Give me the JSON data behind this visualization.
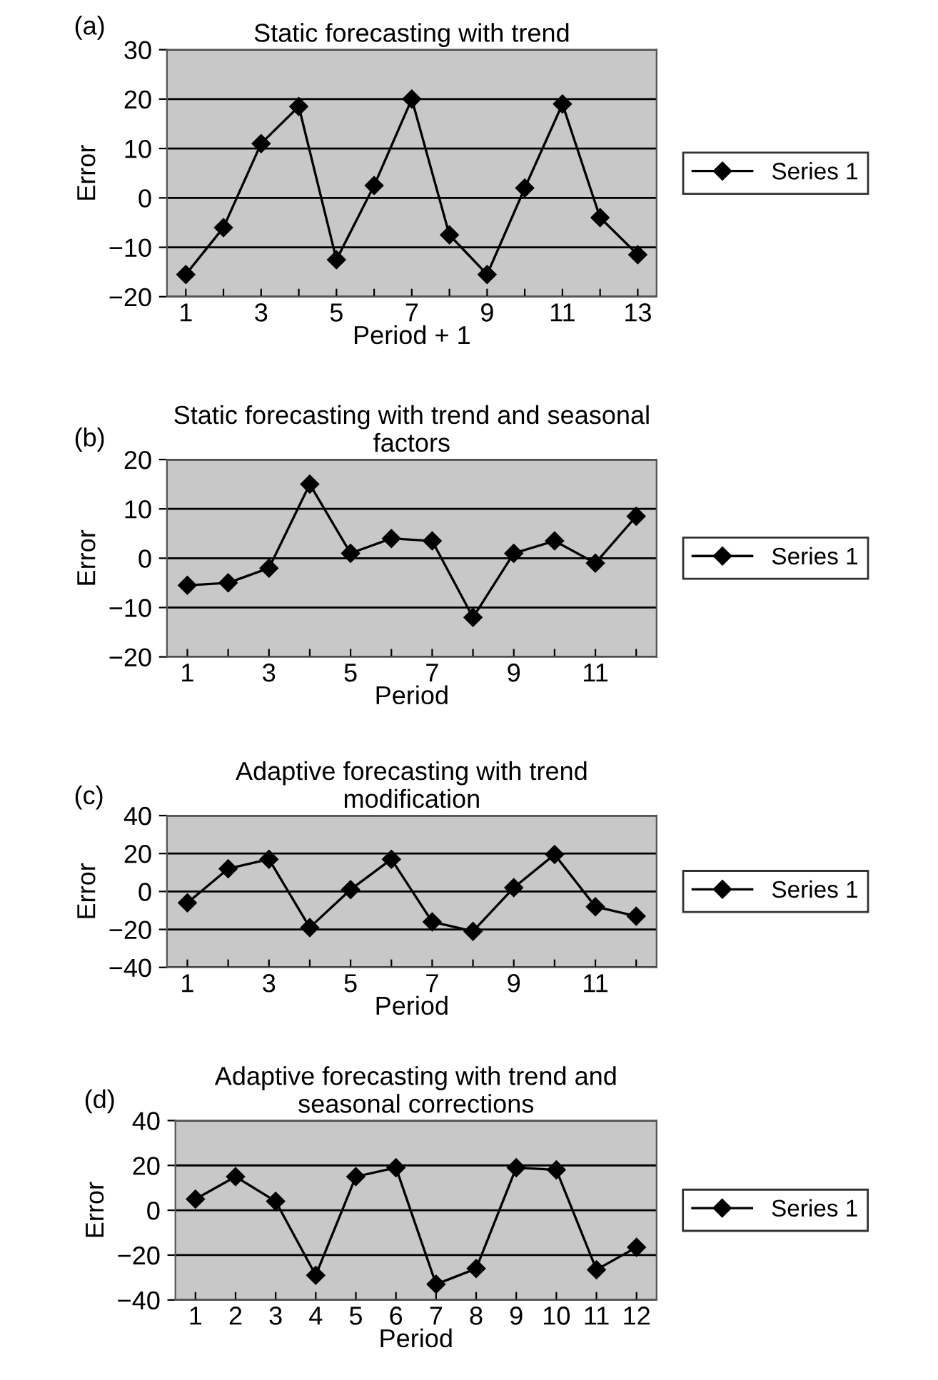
{
  "chart_data": [
    {
      "type": "line",
      "title": "Static forecasting with trend",
      "xlabel": "Period + 1",
      "ylabel": "Error",
      "annotations": [
        "(a)"
      ],
      "categories": [
        "1",
        null,
        "3",
        null,
        "5",
        null,
        "7",
        null,
        "9",
        null,
        "11",
        null,
        "13"
      ],
      "series": [
        {
          "name": "Series 1",
          "color": "#000000",
          "values": [
            -15.5,
            -6,
            11,
            18.5,
            -12.5,
            2.5,
            20,
            -7.5,
            -15.5,
            2,
            19,
            -4,
            -11.5
          ]
        }
      ],
      "ylim": [
        -20,
        30
      ],
      "yticks": [
        {
          "value": -20,
          "label": "−20"
        },
        {
          "value": -10,
          "label": "−10"
        },
        0,
        10,
        20,
        30
      ],
      "grid": "y",
      "legend": "right",
      "marker": "diamond",
      "line_style": "solid"
    },
    {
      "type": "line",
      "title": "Static forecasting with trend and seasonal factors",
      "xlabel": "Period",
      "ylabel": "Error",
      "annotations": [
        "(b)"
      ],
      "categories": [
        "1",
        null,
        "3",
        null,
        "5",
        null,
        "7",
        null,
        "9",
        null,
        "11",
        null
      ],
      "series": [
        {
          "name": "Series 1",
          "color": "#000000",
          "values": [
            -5.5,
            -5,
            -2,
            15,
            1,
            4,
            3.5,
            -12,
            1,
            3.5,
            -1,
            8.5
          ]
        }
      ],
      "ylim": [
        -20,
        20
      ],
      "yticks": [
        {
          "value": -20,
          "label": "−20"
        },
        {
          "value": -10,
          "label": "−10"
        },
        0,
        10,
        20
      ],
      "grid": "y",
      "legend": "right",
      "marker": "diamond",
      "line_style": "solid"
    },
    {
      "type": "line",
      "title": "Adaptive forecasting with trend modification",
      "xlabel": "Period",
      "ylabel": "Error",
      "annotations": [
        "(c)"
      ],
      "categories": [
        "1",
        null,
        "3",
        null,
        "5",
        null,
        "7",
        null,
        "9",
        null,
        "11",
        null
      ],
      "series": [
        {
          "name": "Series 1",
          "color": "#000000",
          "values": [
            -6,
            12,
            17,
            -19,
            1,
            17,
            -16,
            -21,
            2,
            19.5,
            -8,
            -13
          ]
        }
      ],
      "ylim": [
        -40,
        40
      ],
      "yticks": [
        {
          "value": -40,
          "label": "−40"
        },
        {
          "value": -20,
          "label": "−20"
        },
        0,
        20,
        40
      ],
      "grid": "y",
      "legend": "right",
      "marker": "diamond",
      "line_style": "solid"
    },
    {
      "type": "line",
      "title": "Adaptive forecasting with trend and seasonal corrections",
      "xlabel": "Period",
      "ylabel": "Error",
      "annotations": [
        "(d)"
      ],
      "categories": [
        "1",
        "2",
        "3",
        "4",
        "5",
        "6",
        "7",
        "8",
        "9",
        "10",
        "11",
        "12"
      ],
      "series": [
        {
          "name": "Series 1",
          "color": "#000000",
          "values": [
            5,
            15,
            4,
            -29,
            15,
            19,
            -33,
            -26,
            19,
            18,
            -26.5,
            -16.5
          ]
        }
      ],
      "ylim": [
        -40,
        40
      ],
      "yticks": [
        {
          "value": -40,
          "label": "−40"
        },
        {
          "value": -20,
          "label": "−20"
        },
        0,
        20,
        40
      ],
      "grid": "y",
      "legend": "right",
      "marker": "diamond",
      "line_style": "solid"
    }
  ]
}
